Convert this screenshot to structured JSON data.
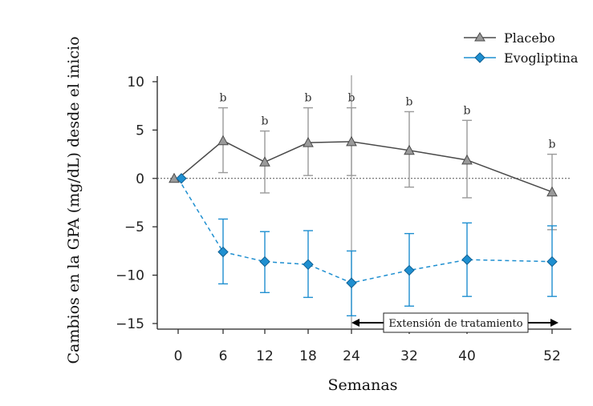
{
  "chart_data": {
    "type": "line",
    "xlabel": "Semanas",
    "ylabel": "Cambios en la GPA (mg/dL) desde el inicio",
    "ylim": [
      -15,
      10
    ],
    "x": [
      0,
      6,
      12,
      18,
      24,
      32,
      40,
      52
    ],
    "x_tick_labels": [
      "0",
      "6",
      "12",
      "18",
      "24",
      "32",
      "40",
      "52"
    ],
    "y_ticks": [
      10,
      5,
      0,
      -5,
      -10,
      -15
    ],
    "y_tick_labels": [
      "10",
      "5",
      "0",
      "−5",
      "−10",
      "−15"
    ],
    "legend_position": "top-right",
    "reference_line_y": 0,
    "series": [
      {
        "name": "Placebo",
        "color": "#4a4a4a",
        "error_color": "#9a9a9a",
        "marker": "triangle",
        "line_style": "solid",
        "values": [
          0,
          3.9,
          1.7,
          3.7,
          3.8,
          2.9,
          1.9,
          -1.4
        ],
        "upper": [
          0,
          7.3,
          4.9,
          7.3,
          7.3,
          6.9,
          6.0,
          2.5
        ],
        "lower": [
          0,
          0.6,
          -1.5,
          0.3,
          0.3,
          -0.9,
          -2.0,
          -5.3
        ]
      },
      {
        "name": "Evogliptina",
        "color": "#1f8fd0",
        "error_color": "#1f8fd0",
        "marker": "diamond",
        "line_style": "dashed",
        "values": [
          0,
          -7.6,
          -8.6,
          -8.9,
          -10.8,
          -9.5,
          -8.4,
          -8.6
        ],
        "upper": [
          0,
          -4.2,
          -5.5,
          -5.4,
          -7.5,
          -5.7,
          -4.6,
          -4.9
        ],
        "lower": [
          0,
          -10.9,
          -11.8,
          -12.3,
          -14.2,
          -13.2,
          -12.2,
          -12.2
        ]
      }
    ],
    "annotations": {
      "significance_label": "b",
      "significance_x": [
        6,
        12,
        18,
        24,
        32,
        40,
        52
      ],
      "treatment_extension_label": "Extensión de tratamiento",
      "treatment_extension_from_week": 24,
      "treatment_extension_to_week": 52,
      "vertical_marker_week": 24
    }
  }
}
